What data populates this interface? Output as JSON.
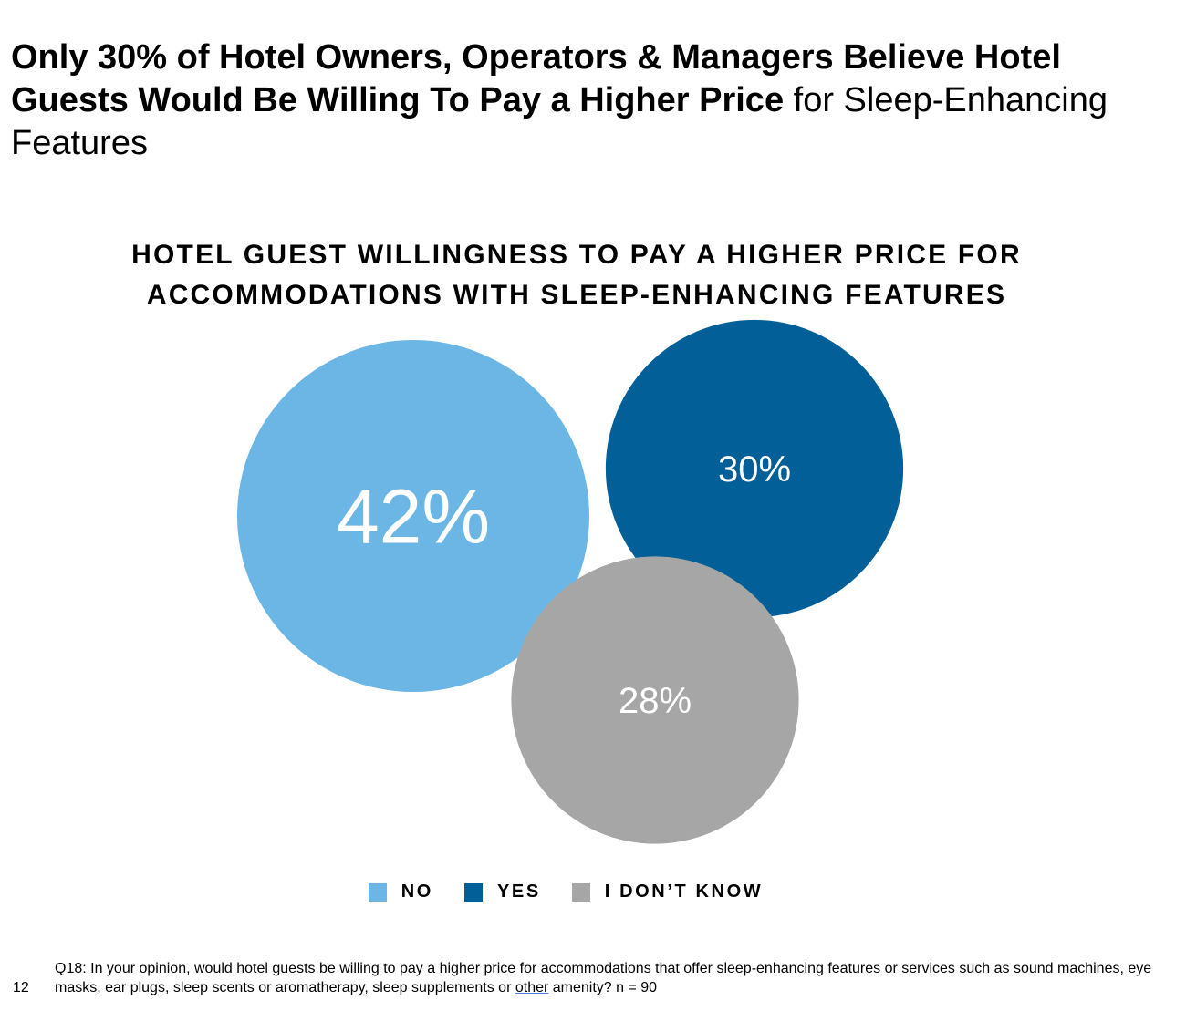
{
  "headline": {
    "bold": "Only 30% of Hotel Owners, Operators & Managers Believe Hotel Guests Would Be Willing To Pay a Higher Price",
    "regular": " for Sleep-Enhancing Features"
  },
  "chart_data": {
    "type": "bubble",
    "title_line1": "HOTEL GUEST WILLINGNESS TO PAY A HIGHER PRICE FOR",
    "title_line2": "ACCOMMODATIONS WITH SLEEP-ENHANCING FEATURES",
    "categories": [
      "NO",
      "YES",
      "I DON’T KNOW"
    ],
    "values": [
      42,
      30,
      28
    ],
    "data_labels": [
      "42%",
      "30%",
      "28%"
    ],
    "colors": [
      "#6bb6e4",
      "#025f97",
      "#a6a6a6"
    ],
    "legend_position": "bottom"
  },
  "footer": {
    "page_number": "12",
    "question_part1": "Q18: In your opinion, would hotel guests be willing to pay a higher price for accommodations that offer sleep-enhancing features or services such as sound machines, eye masks, ear plugs, sleep scents or aromatherapy, sleep supplements or ",
    "question_underlined": "other",
    "question_part2": " amenity? n = 90"
  }
}
